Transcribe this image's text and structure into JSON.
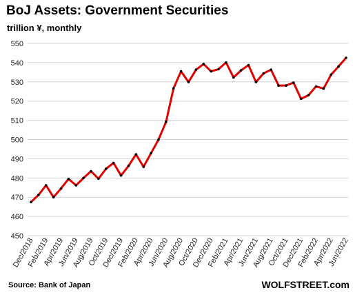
{
  "chart_data": {
    "type": "line",
    "title": "BoJ Assets: Government Securities",
    "subtitle": "trillion ¥, monthly",
    "source": "Source: Bank of Japan",
    "brand": "WOLFSTREET.com",
    "ylim": [
      450,
      550
    ],
    "yticks": [
      450,
      460,
      470,
      480,
      490,
      500,
      510,
      520,
      530,
      540,
      550
    ],
    "grid": true,
    "line_color": "#e00000",
    "marker_color": "#000000",
    "xlabels": [
      "Dec/2018",
      "Feb/2019",
      "Apr/2019",
      "Jun/2019",
      "Aug/2019",
      "Oct/2019",
      "Dec/2019",
      "Feb/2020",
      "Apr/2020",
      "Jun/2020",
      "Aug/2020",
      "Oct/2020",
      "Dec/2020",
      "Feb/2021",
      "Apr/2021",
      "Jun/2021",
      "Aug/2021",
      "Oct/2021",
      "Dec/2021",
      "Feb/2022",
      "Apr/2022",
      "Jun/2022"
    ],
    "x": [
      "Dec/2018",
      "Jan/2019",
      "Feb/2019",
      "Mar/2019",
      "Apr/2019",
      "May/2019",
      "Jun/2019",
      "Jul/2019",
      "Aug/2019",
      "Sep/2019",
      "Oct/2019",
      "Nov/2019",
      "Dec/2019",
      "Jan/2020",
      "Feb/2020",
      "Mar/2020",
      "Apr/2020",
      "May/2020",
      "Jun/2020",
      "Jul/2020",
      "Aug/2020",
      "Sep/2020",
      "Oct/2020",
      "Nov/2020",
      "Dec/2020",
      "Jan/2021",
      "Feb/2021",
      "Mar/2021",
      "Apr/2021",
      "May/2021",
      "Jun/2021",
      "Jul/2021",
      "Aug/2021",
      "Sep/2021",
      "Oct/2021",
      "Nov/2021",
      "Dec/2021",
      "Jan/2022",
      "Feb/2022",
      "Mar/2022",
      "Apr/2022",
      "May/2022",
      "Jun/2022"
    ],
    "values": [
      467.5,
      471.2,
      476.2,
      470.0,
      474.5,
      479.5,
      476.2,
      480.0,
      483.5,
      479.6,
      484.8,
      487.8,
      481.3,
      486.3,
      492.3,
      485.8,
      492.9,
      500.0,
      509.2,
      526.6,
      535.5,
      529.9,
      536.3,
      539.3,
      535.5,
      536.6,
      540.1,
      532.3,
      536.0,
      538.7,
      529.9,
      534.4,
      536.3,
      528.1,
      528.1,
      529.6,
      521.2,
      523.1,
      527.6,
      526.5,
      533.7,
      538.0,
      542.5
    ]
  }
}
